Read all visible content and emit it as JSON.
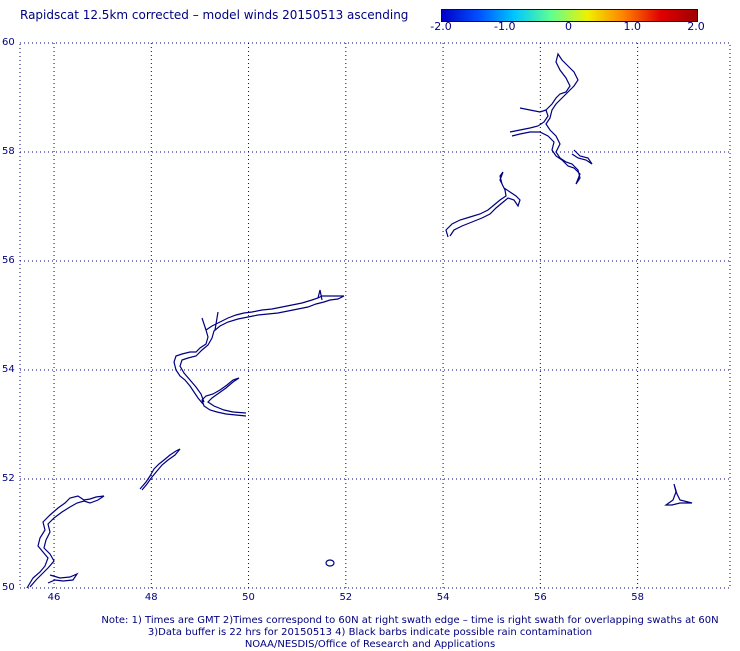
{
  "title": "Rapidscat 12.5km corrected – model winds 20150513 ascending",
  "colorbar": {
    "ticks": [
      "-2.0",
      "-1.0",
      "0",
      "1.0",
      "2.0"
    ],
    "tick_values": [
      -2.0,
      -1.0,
      0.0,
      1.0,
      2.0
    ],
    "range": [
      -2.0,
      2.0
    ],
    "colors": [
      "#0000c8",
      "#0050ff",
      "#00c8ff",
      "#60ff90",
      "#f0f000",
      "#ff8000",
      "#e00000",
      "#a00000"
    ]
  },
  "map": {
    "lon_range": [
      45.3,
      59.9
    ],
    "lat_range": [
      50.0,
      60.0
    ],
    "x_ticks": [
      "46",
      "48",
      "50",
      "52",
      "54",
      "56",
      "58"
    ],
    "x_tick_values": [
      46,
      48,
      50,
      52,
      54,
      56,
      58
    ],
    "y_ticks": [
      "60",
      "58",
      "56",
      "54",
      "52",
      "50"
    ],
    "y_tick_values": [
      60,
      58,
      56,
      54,
      52,
      50
    ],
    "grid": "dotted",
    "coastline_color": "#000080"
  },
  "notes": {
    "line1": "Note: 1) Times are GMT 2)Times correspond to 60N at right swath edge – time is right swath for overlapping swaths at 60N",
    "line2": "3)Data buffer is 22 hrs for 20150513 4) Black barbs indicate possible rain contamination",
    "line3": "NOAA/NESDIS/Office of Research and Applications"
  }
}
